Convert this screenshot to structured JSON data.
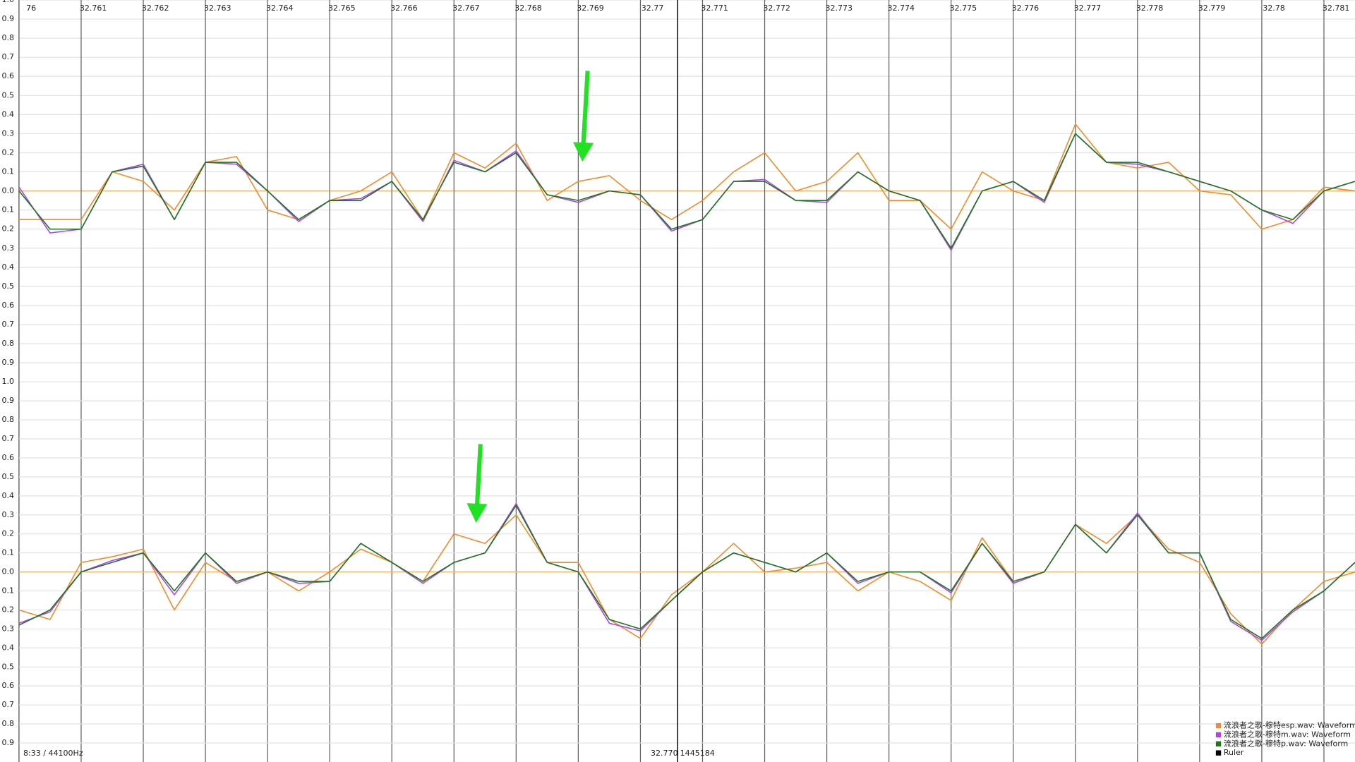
{
  "chart_data": [
    {
      "type": "line",
      "x": [
        32.76,
        32.7605,
        32.761,
        32.7615,
        32.762,
        32.7625,
        32.763,
        32.7635,
        32.764,
        32.7645,
        32.765,
        32.7655,
        32.766,
        32.7665,
        32.767,
        32.7675,
        32.768,
        32.7685,
        32.769,
        32.7695,
        32.77,
        32.7705,
        32.771,
        32.7715,
        32.772,
        32.7725,
        32.773,
        32.7735,
        32.774,
        32.7745,
        32.775,
        32.7755,
        32.776,
        32.7765,
        32.777,
        32.7775,
        32.778,
        32.7785,
        32.779,
        32.7795,
        32.78,
        32.7805,
        32.781,
        32.7815
      ],
      "xlim": [
        32.76,
        32.7815
      ],
      "xticks": [
        {
          "value": 32.76,
          "label": "76"
        },
        32.761,
        32.762,
        32.763,
        32.764,
        32.765,
        32.766,
        32.767,
        32.768,
        32.769,
        32.77,
        32.771,
        32.772,
        32.773,
        32.774,
        32.775,
        32.776,
        32.777,
        32.778,
        32.779,
        32.78,
        32.781
      ],
      "ylim": [
        -1,
        1
      ],
      "yticks": [
        {
          "value": 1,
          "label": "1.0"
        },
        0.9,
        0.8,
        0.7,
        0.6,
        0.5,
        0.4,
        0.3,
        0.2,
        0.1,
        {
          "value": 0,
          "label": "0.0"
        },
        {
          "value": -0.1,
          "label": "0.1"
        },
        {
          "value": -0.2,
          "label": "0.2"
        },
        {
          "value": -0.3,
          "label": "0.3"
        },
        {
          "value": -0.4,
          "label": "0.4"
        },
        {
          "value": -0.5,
          "label": "0.5"
        },
        {
          "value": -0.6,
          "label": "0.6"
        },
        {
          "value": -0.7,
          "label": "0.7"
        },
        {
          "value": -0.8,
          "label": "0.8"
        },
        {
          "value": -0.9,
          "label": "0.9"
        },
        {
          "value": -1,
          "label": "1.0"
        }
      ],
      "series": [
        {
          "name": "流浪者之歌-穆特esp.wav: Waveform",
          "color": "#f28c28",
          "values": [
            -0.15,
            -0.15,
            -0.15,
            0.1,
            0.05,
            -0.1,
            0.15,
            0.18,
            -0.1,
            -0.15,
            -0.05,
            0.0,
            0.1,
            -0.15,
            0.2,
            0.12,
            0.25,
            -0.05,
            0.05,
            0.08,
            -0.05,
            -0.15,
            -0.05,
            0.1,
            0.2,
            0.0,
            0.05,
            0.2,
            -0.05,
            -0.05,
            -0.2,
            0.1,
            0.0,
            -0.05,
            0.35,
            0.15,
            0.12,
            0.15,
            0.0,
            -0.02,
            -0.2,
            -0.15,
            0.02,
            0.0
          ]
        },
        {
          "name": "流浪者之歌-穆特m.wav: Waveform",
          "color": "#b040f0",
          "values": [
            0.02,
            -0.22,
            -0.2,
            0.1,
            0.14,
            -0.15,
            0.15,
            0.14,
            0.0,
            -0.16,
            -0.05,
            -0.04,
            0.05,
            -0.16,
            0.16,
            0.1,
            0.21,
            -0.02,
            -0.06,
            0.0,
            -0.02,
            -0.21,
            -0.15,
            0.05,
            0.06,
            -0.05,
            -0.06,
            0.1,
            0.0,
            -0.05,
            -0.31,
            0.0,
            0.05,
            -0.06,
            0.3,
            0.15,
            0.14,
            0.1,
            0.05,
            0.0,
            -0.1,
            -0.17,
            0.0,
            0.05
          ]
        },
        {
          "name": "流浪者之歌-穆特p.wav: Waveform",
          "color": "#1a7a1a",
          "values": [
            0.0,
            -0.2,
            -0.2,
            0.1,
            0.13,
            -0.15,
            0.15,
            0.15,
            0.0,
            -0.15,
            -0.05,
            -0.05,
            0.05,
            -0.15,
            0.15,
            0.1,
            0.2,
            -0.02,
            -0.05,
            0.0,
            -0.02,
            -0.2,
            -0.15,
            0.05,
            0.05,
            -0.05,
            -0.05,
            0.1,
            0.0,
            -0.05,
            -0.3,
            0.0,
            0.05,
            -0.05,
            0.3,
            0.15,
            0.15,
            0.1,
            0.05,
            0.0,
            -0.1,
            -0.15,
            0.0,
            0.05
          ]
        }
      ]
    },
    {
      "type": "line",
      "x": [
        32.76,
        32.7605,
        32.761,
        32.7615,
        32.762,
        32.7625,
        32.763,
        32.7635,
        32.764,
        32.7645,
        32.765,
        32.7655,
        32.766,
        32.7665,
        32.767,
        32.7675,
        32.768,
        32.7685,
        32.769,
        32.7695,
        32.77,
        32.7705,
        32.771,
        32.7715,
        32.772,
        32.7725,
        32.773,
        32.7735,
        32.774,
        32.7745,
        32.775,
        32.7755,
        32.776,
        32.7765,
        32.777,
        32.7775,
        32.778,
        32.7785,
        32.779,
        32.7795,
        32.78,
        32.7805,
        32.781,
        32.7815
      ],
      "xlim": [
        32.76,
        32.7815
      ],
      "ylim": [
        -1,
        1
      ],
      "yticks": [
        0.9,
        0.8,
        0.7,
        0.6,
        0.5,
        0.4,
        0.3,
        0.2,
        0.1,
        {
          "value": 0,
          "label": "0.0"
        },
        {
          "value": -0.1,
          "label": "0.1"
        },
        {
          "value": -0.2,
          "label": "0.2"
        },
        {
          "value": -0.3,
          "label": "0.3"
        },
        {
          "value": -0.4,
          "label": "0.4"
        },
        {
          "value": -0.5,
          "label": "0.5"
        },
        {
          "value": -0.6,
          "label": "0.6"
        },
        {
          "value": -0.7,
          "label": "0.7"
        },
        {
          "value": -0.8,
          "label": "0.8"
        },
        {
          "value": -0.9,
          "label": "0.9"
        }
      ],
      "series": [
        {
          "name": "流浪者之歌-穆特esp.wav: Waveform",
          "color": "#f28c28",
          "values": [
            -0.2,
            -0.25,
            0.05,
            0.08,
            0.12,
            -0.2,
            0.05,
            -0.05,
            0.0,
            -0.1,
            0.0,
            0.12,
            0.05,
            -0.05,
            0.2,
            0.15,
            0.3,
            0.05,
            0.05,
            -0.25,
            -0.35,
            -0.12,
            0.0,
            0.15,
            0.0,
            0.02,
            0.05,
            -0.1,
            0.0,
            -0.05,
            -0.15,
            0.18,
            -0.05,
            0.0,
            0.25,
            0.15,
            0.3,
            0.12,
            0.05,
            -0.22,
            -0.38,
            -0.2,
            -0.05,
            0.0
          ]
        },
        {
          "name": "流浪者之歌-穆特m.wav: Waveform",
          "color": "#b040f0",
          "values": [
            -0.27,
            -0.21,
            0.0,
            0.06,
            0.1,
            -0.12,
            0.1,
            -0.06,
            0.0,
            -0.06,
            -0.05,
            0.15,
            0.05,
            -0.06,
            0.05,
            0.1,
            0.36,
            0.05,
            0.0,
            -0.27,
            -0.31,
            -0.15,
            0.0,
            0.1,
            0.05,
            0.0,
            0.1,
            -0.06,
            0.0,
            0.0,
            -0.11,
            0.15,
            -0.06,
            0.0,
            0.25,
            0.1,
            0.31,
            0.1,
            0.1,
            -0.26,
            -0.36,
            -0.21,
            -0.1,
            0.05
          ]
        },
        {
          "name": "流浪者之歌-穆特p.wav: Waveform",
          "color": "#1a7a1a",
          "values": [
            -0.28,
            -0.2,
            0.0,
            0.05,
            0.1,
            -0.1,
            0.1,
            -0.05,
            0.0,
            -0.05,
            -0.05,
            0.15,
            0.05,
            -0.05,
            0.05,
            0.1,
            0.35,
            0.05,
            0.0,
            -0.25,
            -0.3,
            -0.15,
            0.0,
            0.1,
            0.05,
            0.0,
            0.1,
            -0.05,
            0.0,
            0.0,
            -0.1,
            0.15,
            -0.05,
            0.0,
            0.25,
            0.1,
            0.3,
            0.1,
            0.1,
            -0.25,
            -0.35,
            -0.2,
            -0.1,
            0.05
          ]
        }
      ]
    }
  ],
  "ruler": {
    "name": "Ruler",
    "color": "#000000",
    "x": 32.7706
  },
  "status": {
    "time": "8:33 / 44100Hz",
    "position": "32.770",
    "sample": "1445184"
  }
}
